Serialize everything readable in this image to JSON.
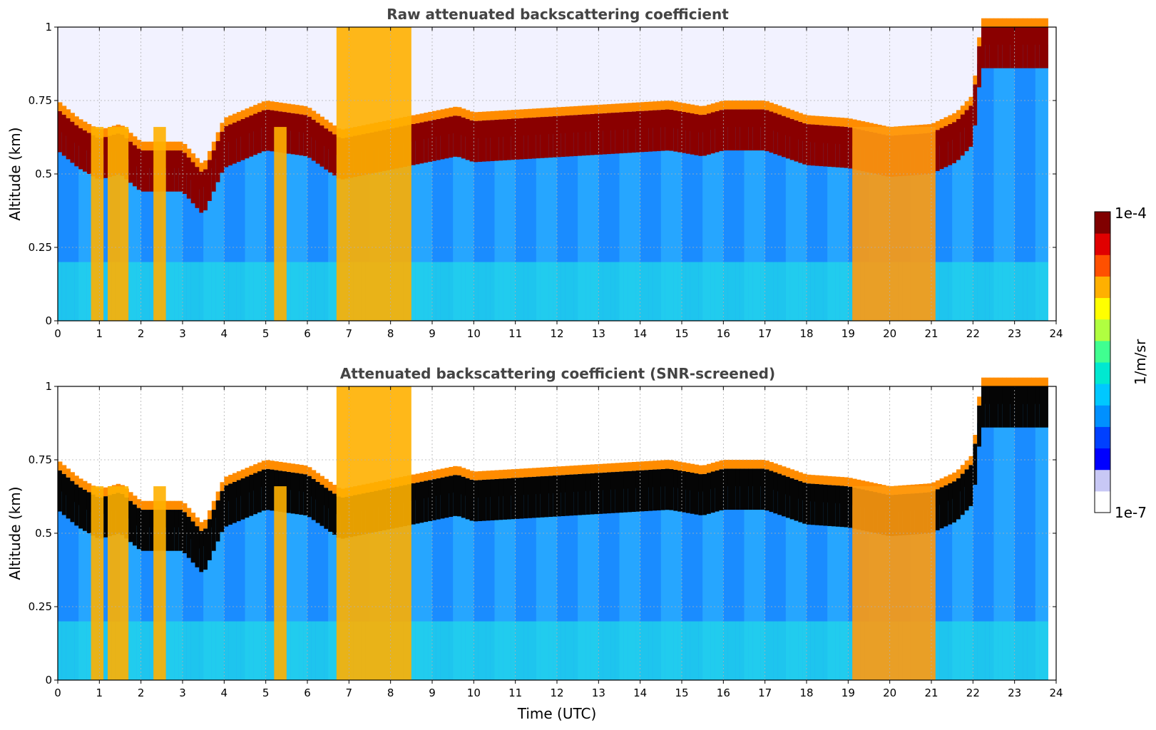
{
  "chart_data": [
    {
      "type": "heatmap",
      "title": "Raw attenuated backscattering coefficient",
      "xlabel": "",
      "ylabel": "Altitude (km)",
      "xlim": [
        0,
        24
      ],
      "ylim": [
        0,
        1
      ],
      "xticks": [
        "0",
        "1",
        "2",
        "3",
        "4",
        "5",
        "6",
        "7",
        "8",
        "9",
        "10",
        "11",
        "12",
        "13",
        "14",
        "15",
        "16",
        "17",
        "18",
        "19",
        "20",
        "21",
        "22",
        "23",
        "24"
      ],
      "yticks": [
        "0",
        "0.25",
        "0.5",
        "0.75",
        "1"
      ],
      "screened": false,
      "features": {
        "cloud_layer_top_km": [
          [
            0,
            0.72
          ],
          [
            0.5,
            0.66
          ],
          [
            1,
            0.62
          ],
          [
            1.5,
            0.64
          ],
          [
            2,
            0.58
          ],
          [
            3,
            0.58
          ],
          [
            3.5,
            0.5
          ],
          [
            4,
            0.66
          ],
          [
            5,
            0.72
          ],
          [
            6,
            0.7
          ],
          [
            6.8,
            0.62
          ],
          [
            9.6,
            0.7
          ],
          [
            10,
            0.68
          ],
          [
            14.7,
            0.72
          ],
          [
            15.5,
            0.7
          ],
          [
            16,
            0.72
          ],
          [
            17,
            0.72
          ],
          [
            18,
            0.67
          ],
          [
            19,
            0.66
          ],
          [
            20,
            0.63
          ],
          [
            21,
            0.64
          ],
          [
            21.6,
            0.68
          ],
          [
            22,
            0.74
          ],
          [
            22.2,
            1.0
          ],
          [
            23.8,
            1.0
          ]
        ],
        "high_signal_columns_utc": [
          [
            0.8,
            1.1
          ],
          [
            1.2,
            1.7
          ],
          [
            2.3,
            2.6
          ],
          [
            5.2,
            5.5
          ],
          [
            6.7,
            8.5
          ],
          [
            19.1,
            21.1
          ]
        ]
      }
    },
    {
      "type": "heatmap",
      "title": "Attenuated backscattering coefficient (SNR-screened)",
      "xlabel": "Time (UTC)",
      "ylabel": "Altitude (km)",
      "xlim": [
        0,
        24
      ],
      "ylim": [
        0,
        1
      ],
      "xticks": [
        "0",
        "1",
        "2",
        "3",
        "4",
        "5",
        "6",
        "7",
        "8",
        "9",
        "10",
        "11",
        "12",
        "13",
        "14",
        "15",
        "16",
        "17",
        "18",
        "19",
        "20",
        "21",
        "22",
        "23",
        "24"
      ],
      "yticks": [
        "0",
        "0.25",
        "0.5",
        "0.75",
        "1"
      ],
      "screened": true,
      "features": {
        "cloud_layer_top_km": [
          [
            0,
            0.72
          ],
          [
            0.5,
            0.66
          ],
          [
            1,
            0.62
          ],
          [
            1.5,
            0.64
          ],
          [
            2,
            0.58
          ],
          [
            3,
            0.58
          ],
          [
            3.5,
            0.5
          ],
          [
            4,
            0.66
          ],
          [
            5,
            0.72
          ],
          [
            6,
            0.7
          ],
          [
            6.8,
            0.62
          ],
          [
            9.6,
            0.7
          ],
          [
            10,
            0.68
          ],
          [
            14.7,
            0.72
          ],
          [
            15.5,
            0.7
          ],
          [
            16,
            0.72
          ],
          [
            17,
            0.72
          ],
          [
            18,
            0.67
          ],
          [
            19,
            0.66
          ],
          [
            20,
            0.63
          ],
          [
            21,
            0.64
          ],
          [
            21.6,
            0.68
          ],
          [
            22,
            0.74
          ],
          [
            22.2,
            1.0
          ],
          [
            23.8,
            1.0
          ]
        ],
        "high_signal_columns_utc": [
          [
            0.8,
            1.1
          ],
          [
            1.2,
            1.7
          ],
          [
            2.3,
            2.6
          ],
          [
            5.2,
            5.5
          ],
          [
            6.7,
            8.5
          ],
          [
            19.1,
            21.1
          ]
        ]
      }
    }
  ],
  "colorbar": {
    "min_label": "1e-7",
    "max_label": "1e-4",
    "unit_label": "1/m/sr",
    "colors": [
      "#ffffff",
      "#c8c8f5",
      "#0000ff",
      "#0040ff",
      "#0090ff",
      "#00c8ff",
      "#00e8d0",
      "#40ff90",
      "#b0ff40",
      "#ffff00",
      "#ffb000",
      "#ff5000",
      "#e00000",
      "#800000"
    ]
  }
}
